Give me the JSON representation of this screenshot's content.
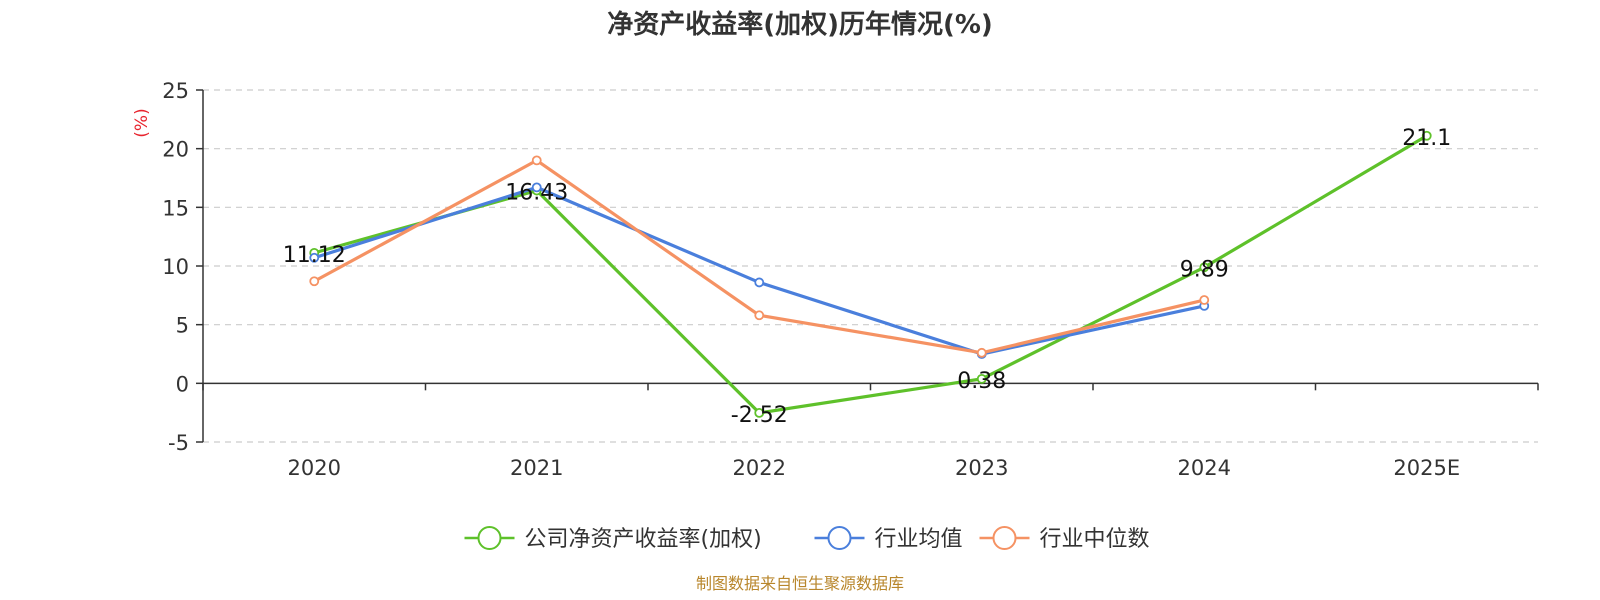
{
  "chart_data": {
    "type": "line",
    "title": "净资产收益率(加权)历年情况(%)",
    "ylabel": "(%)",
    "xlabel": "",
    "ylim": [
      -5,
      25
    ],
    "yticks": [
      -5,
      0,
      5,
      10,
      15,
      20,
      25
    ],
    "grid": true,
    "categories": [
      "2020",
      "2021",
      "2022",
      "2023",
      "2024",
      "2025E"
    ],
    "series": [
      {
        "name": "公司净资产收益率(加权)",
        "color": "#5ec12a",
        "values": [
          11.12,
          16.43,
          -2.52,
          0.38,
          9.89,
          21.1
        ],
        "labels": [
          "11.12",
          "16.43",
          "-2.52",
          "0.38",
          "9.89",
          "21.1"
        ]
      },
      {
        "name": "行业均值",
        "color": "#4a7fdc",
        "values": [
          10.7,
          16.7,
          8.6,
          2.5,
          6.6,
          null
        ]
      },
      {
        "name": "行业中位数",
        "color": "#f59263",
        "values": [
          8.7,
          19.0,
          5.8,
          2.6,
          7.1,
          null
        ]
      }
    ],
    "legend_position": "bottom",
    "source": "制图数据来自恒生聚源数据库"
  }
}
